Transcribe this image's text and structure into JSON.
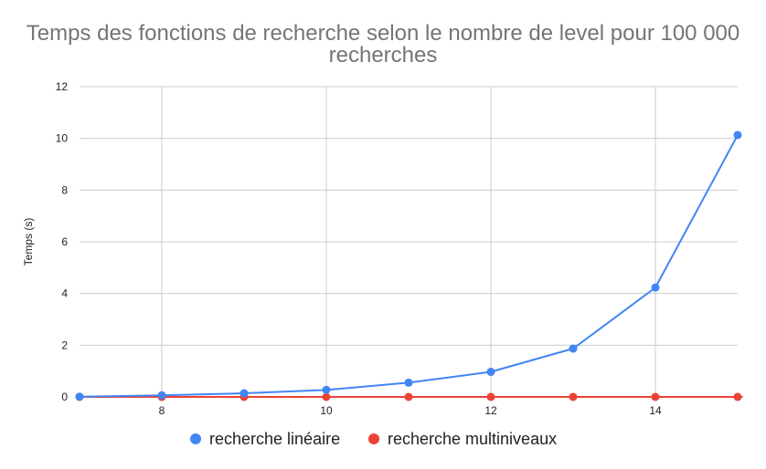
{
  "chart_data": {
    "type": "line",
    "title_line1": "Temps des fonctions de recherche selon le nombre de level pour 100 000",
    "title_line2": "recherches",
    "xlabel": "",
    "ylabel": "Temps (s)",
    "xlim": [
      7,
      15
    ],
    "ylim": [
      0,
      12
    ],
    "x_ticks": [
      8,
      10,
      12,
      14
    ],
    "y_ticks": [
      0,
      2,
      4,
      6,
      8,
      10,
      12
    ],
    "grid": true,
    "legend_position": "bottom",
    "series": [
      {
        "name": "recherche linéaire",
        "color": "#4285F4",
        "x": [
          7,
          8,
          9,
          10,
          11,
          12,
          13,
          14,
          15
        ],
        "values": [
          0.01,
          0.06,
          0.14,
          0.27,
          0.55,
          0.97,
          1.87,
          4.23,
          10.13
        ]
      },
      {
        "name": "recherche multiniveaux",
        "color": "#EA4335",
        "x": [
          7,
          8,
          9,
          10,
          11,
          12,
          13,
          14,
          15
        ],
        "values": [
          0,
          0,
          0,
          0,
          0,
          0,
          0,
          0,
          0
        ]
      }
    ]
  }
}
